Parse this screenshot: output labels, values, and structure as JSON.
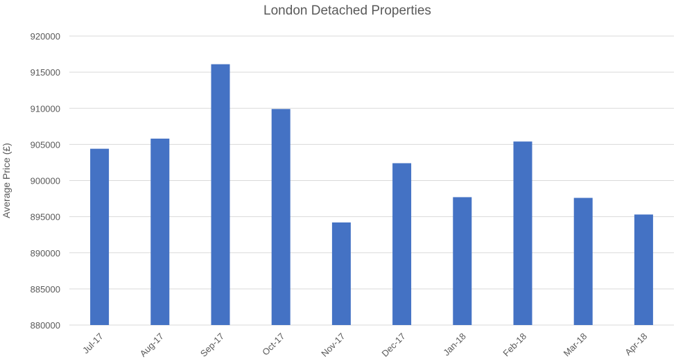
{
  "chart_data": {
    "type": "bar",
    "title": "London Detached Properties",
    "xlabel": "",
    "ylabel": "Average Price (£)",
    "categories": [
      "Jul-17",
      "Aug-17",
      "Sep-17",
      "Oct-17",
      "Nov-17",
      "Dec-17",
      "Jan-18",
      "Feb-18",
      "Mar-18",
      "Apr-18"
    ],
    "values": [
      904400,
      905800,
      916100,
      909900,
      894200,
      902400,
      897700,
      905400,
      897600,
      895300
    ],
    "ylim": [
      880000,
      920000
    ],
    "yticks": [
      880000,
      885000,
      890000,
      895000,
      900000,
      905000,
      910000,
      915000,
      920000
    ],
    "grid": true,
    "legend": "none",
    "bar_color": "#4472c4"
  }
}
